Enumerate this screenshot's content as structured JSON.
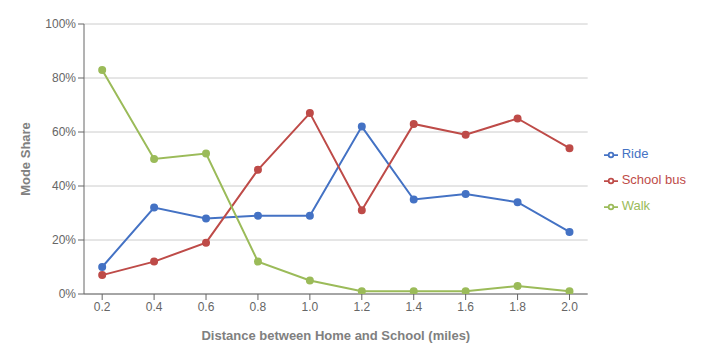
{
  "chart_data": {
    "type": "line",
    "x": [
      0.2,
      0.4,
      0.6,
      0.8,
      1.0,
      1.2,
      1.4,
      1.6,
      1.8,
      2.0
    ],
    "series": [
      {
        "name": "Ride",
        "color": "#4472C4",
        "values": [
          0.1,
          0.32,
          0.28,
          0.29,
          0.29,
          0.62,
          0.35,
          0.37,
          0.34,
          0.23
        ]
      },
      {
        "name": "School bus",
        "color": "#BE4B48",
        "values": [
          0.07,
          0.12,
          0.19,
          0.46,
          0.67,
          0.31,
          0.63,
          0.59,
          0.65,
          0.54
        ]
      },
      {
        "name": "Walk",
        "color": "#9BBB59",
        "values": [
          0.83,
          0.5,
          0.52,
          0.12,
          0.05,
          0.01,
          0.01,
          0.01,
          0.03,
          0.01
        ]
      }
    ],
    "xlabel": "Distance between Home and School (miles)",
    "ylabel": "Mode Share",
    "xlim": [
      0.13,
      2.07
    ],
    "xticks": [
      0.2,
      0.4,
      0.6,
      0.8,
      {
        "value": 1.0,
        "label": "1.0"
      },
      1.2,
      1.4,
      1.6,
      1.8,
      {
        "value": 2.0,
        "label": "2.0"
      }
    ],
    "ylim": [
      0,
      1.0
    ],
    "yticks": [
      {
        "value": 0,
        "label": "0%"
      },
      {
        "value": 0.2,
        "label": "20%"
      },
      {
        "value": 0.4,
        "label": "40%"
      },
      {
        "value": 0.6,
        "label": "60%"
      },
      {
        "value": 0.8,
        "label": "80%"
      },
      {
        "value": 1.0,
        "label": "100%"
      }
    ],
    "grid": true,
    "legend": "right",
    "marker": "circle"
  }
}
